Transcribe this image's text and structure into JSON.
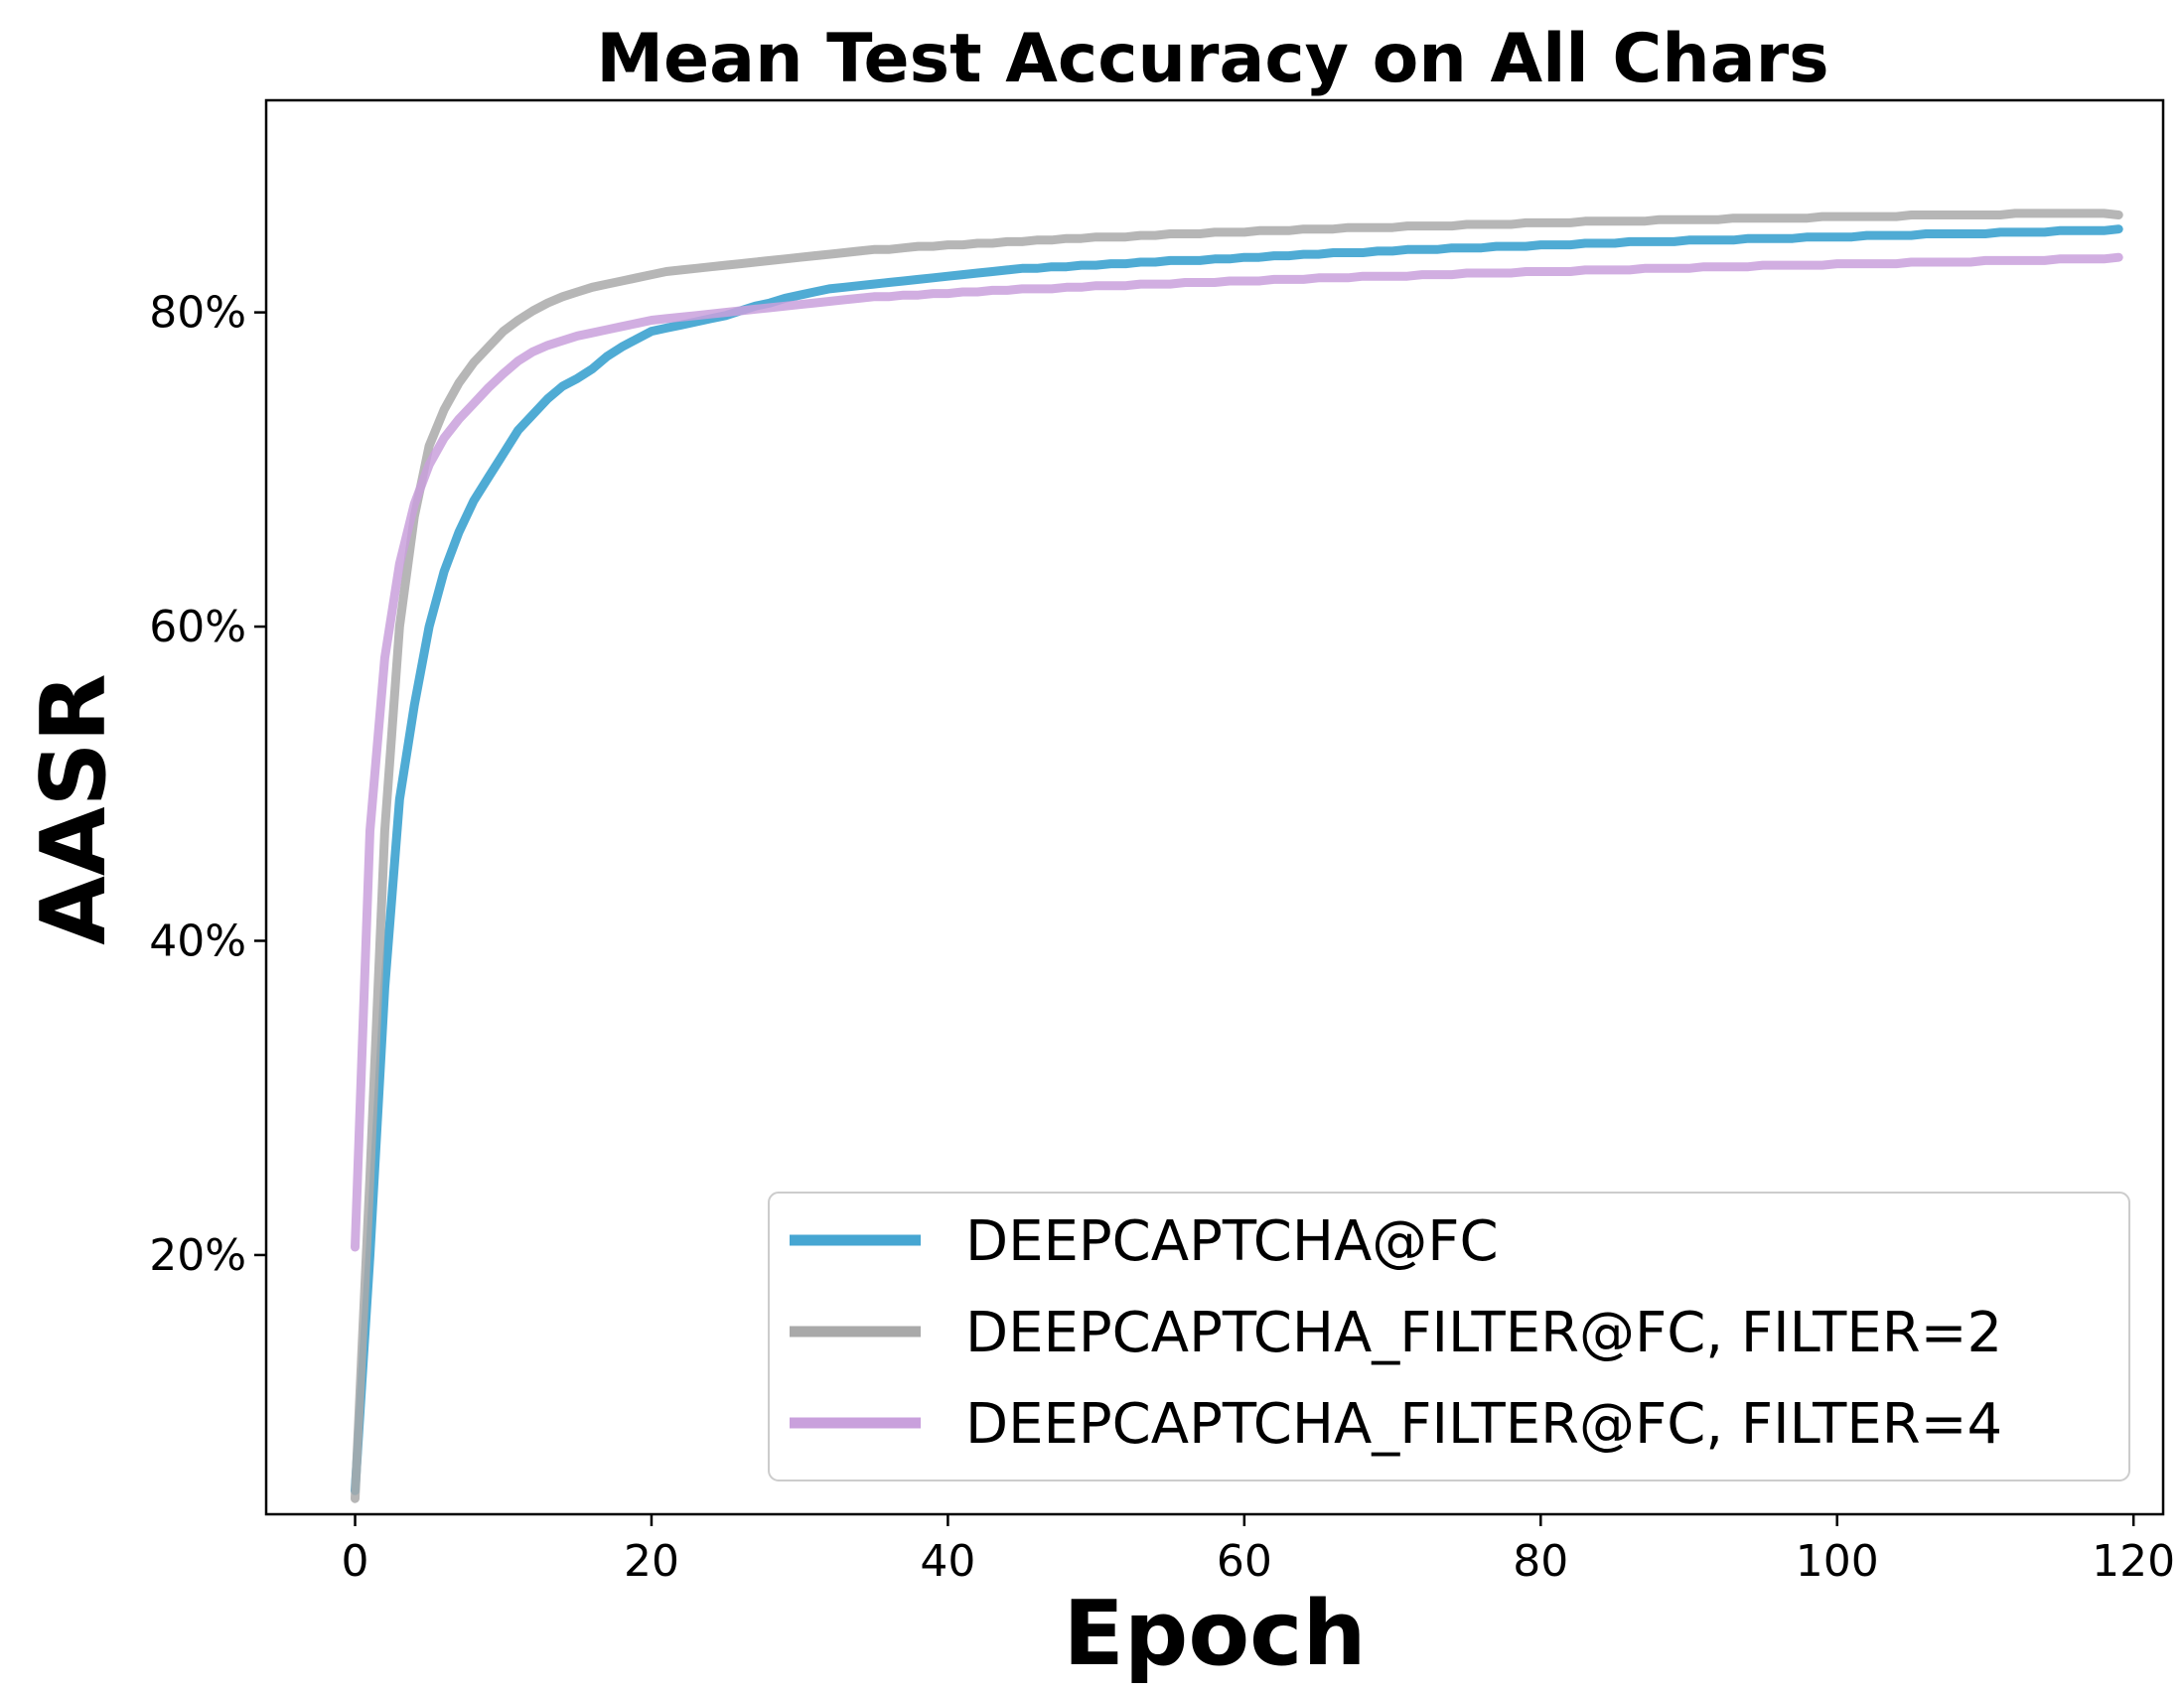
{
  "chart_data": {
    "type": "line",
    "title": "Mean Test Accuracy on All Chars",
    "xlabel": "Epoch",
    "ylabel": "AASR",
    "xlim": [
      -6,
      122
    ],
    "ylim": [
      3.5,
      93.5
    ],
    "xticks": [
      0,
      20,
      40,
      60,
      80,
      100,
      120
    ],
    "xtick_labels": [
      "0",
      "20",
      "40",
      "60",
      "80",
      "100",
      "120"
    ],
    "yticks": [
      20,
      40,
      60,
      80
    ],
    "ytick_labels": [
      "20%",
      "40%",
      "60%",
      "80%"
    ],
    "grid": false,
    "legend_position": "lower-right",
    "x_start": 0,
    "series": [
      {
        "name": "DEEPCAPTCHA@FC",
        "color": "#46a6d2",
        "values": [
          5,
          20,
          37,
          49,
          55,
          60,
          63.5,
          66,
          68,
          69.5,
          71,
          72.5,
          73.5,
          74.5,
          75.3,
          75.8,
          76.4,
          77.2,
          77.8,
          78.3,
          78.8,
          79,
          79.2,
          79.4,
          79.6,
          79.8,
          80.1,
          80.4,
          80.6,
          80.9,
          81.1,
          81.3,
          81.5,
          81.6,
          81.7,
          81.8,
          81.9,
          82,
          82.1,
          82.2,
          82.3,
          82.4,
          82.5,
          82.6,
          82.7,
          82.8,
          82.8,
          82.9,
          82.9,
          83,
          83,
          83.1,
          83.1,
          83.2,
          83.2,
          83.3,
          83.3,
          83.3,
          83.4,
          83.4,
          83.5,
          83.5,
          83.6,
          83.6,
          83.7,
          83.7,
          83.8,
          83.8,
          83.8,
          83.9,
          83.9,
          84,
          84,
          84,
          84.1,
          84.1,
          84.1,
          84.2,
          84.2,
          84.2,
          84.3,
          84.3,
          84.3,
          84.4,
          84.4,
          84.4,
          84.5,
          84.5,
          84.5,
          84.5,
          84.6,
          84.6,
          84.6,
          84.6,
          84.7,
          84.7,
          84.7,
          84.7,
          84.8,
          84.8,
          84.8,
          84.8,
          84.9,
          84.9,
          84.9,
          84.9,
          85,
          85,
          85,
          85,
          85,
          85.1,
          85.1,
          85.1,
          85.1,
          85.2,
          85.2,
          85.2,
          85.2,
          85.3
        ]
      },
      {
        "name": "DEEPCAPTCHA_FILTER@FC, FILTER=2",
        "color": "#a9a9a9",
        "values": [
          4.5,
          25,
          47,
          60,
          67,
          71.5,
          73.8,
          75.5,
          76.8,
          77.8,
          78.8,
          79.5,
          80.1,
          80.6,
          81,
          81.3,
          81.6,
          81.8,
          82,
          82.2,
          82.4,
          82.6,
          82.7,
          82.8,
          82.9,
          83,
          83.1,
          83.2,
          83.3,
          83.4,
          83.5,
          83.6,
          83.7,
          83.8,
          83.9,
          84,
          84,
          84.1,
          84.2,
          84.2,
          84.3,
          84.3,
          84.4,
          84.4,
          84.5,
          84.5,
          84.6,
          84.6,
          84.7,
          84.7,
          84.8,
          84.8,
          84.8,
          84.9,
          84.9,
          85,
          85,
          85,
          85.1,
          85.1,
          85.1,
          85.2,
          85.2,
          85.2,
          85.3,
          85.3,
          85.3,
          85.4,
          85.4,
          85.4,
          85.4,
          85.5,
          85.5,
          85.5,
          85.5,
          85.6,
          85.6,
          85.6,
          85.6,
          85.7,
          85.7,
          85.7,
          85.7,
          85.8,
          85.8,
          85.8,
          85.8,
          85.8,
          85.9,
          85.9,
          85.9,
          85.9,
          85.9,
          86,
          86,
          86,
          86,
          86,
          86,
          86.1,
          86.1,
          86.1,
          86.1,
          86.1,
          86.1,
          86.2,
          86.2,
          86.2,
          86.2,
          86.2,
          86.2,
          86.2,
          86.3,
          86.3,
          86.3,
          86.3,
          86.3,
          86.3,
          86.3,
          86.2
        ]
      },
      {
        "name": "DEEPCAPTCHA_FILTER@FC, FILTER=4",
        "color": "#c9a0dc",
        "values": [
          20.5,
          47,
          58,
          64,
          67.8,
          70.3,
          72,
          73.2,
          74.2,
          75.2,
          76.1,
          76.9,
          77.5,
          77.9,
          78.2,
          78.5,
          78.7,
          78.9,
          79.1,
          79.3,
          79.5,
          79.6,
          79.7,
          79.8,
          79.9,
          80,
          80.1,
          80.2,
          80.3,
          80.4,
          80.5,
          80.6,
          80.7,
          80.8,
          80.9,
          81,
          81,
          81.1,
          81.1,
          81.2,
          81.2,
          81.3,
          81.3,
          81.4,
          81.4,
          81.5,
          81.5,
          81.5,
          81.6,
          81.6,
          81.7,
          81.7,
          81.7,
          81.8,
          81.8,
          81.8,
          81.9,
          81.9,
          81.9,
          82,
          82,
          82,
          82.1,
          82.1,
          82.1,
          82.2,
          82.2,
          82.2,
          82.3,
          82.3,
          82.3,
          82.3,
          82.4,
          82.4,
          82.4,
          82.5,
          82.5,
          82.5,
          82.5,
          82.6,
          82.6,
          82.6,
          82.6,
          82.7,
          82.7,
          82.7,
          82.7,
          82.8,
          82.8,
          82.8,
          82.8,
          82.9,
          82.9,
          82.9,
          82.9,
          83,
          83,
          83,
          83,
          83,
          83.1,
          83.1,
          83.1,
          83.1,
          83.1,
          83.2,
          83.2,
          83.2,
          83.2,
          83.2,
          83.3,
          83.3,
          83.3,
          83.3,
          83.3,
          83.4,
          83.4,
          83.4,
          83.4,
          83.5
        ]
      }
    ]
  }
}
